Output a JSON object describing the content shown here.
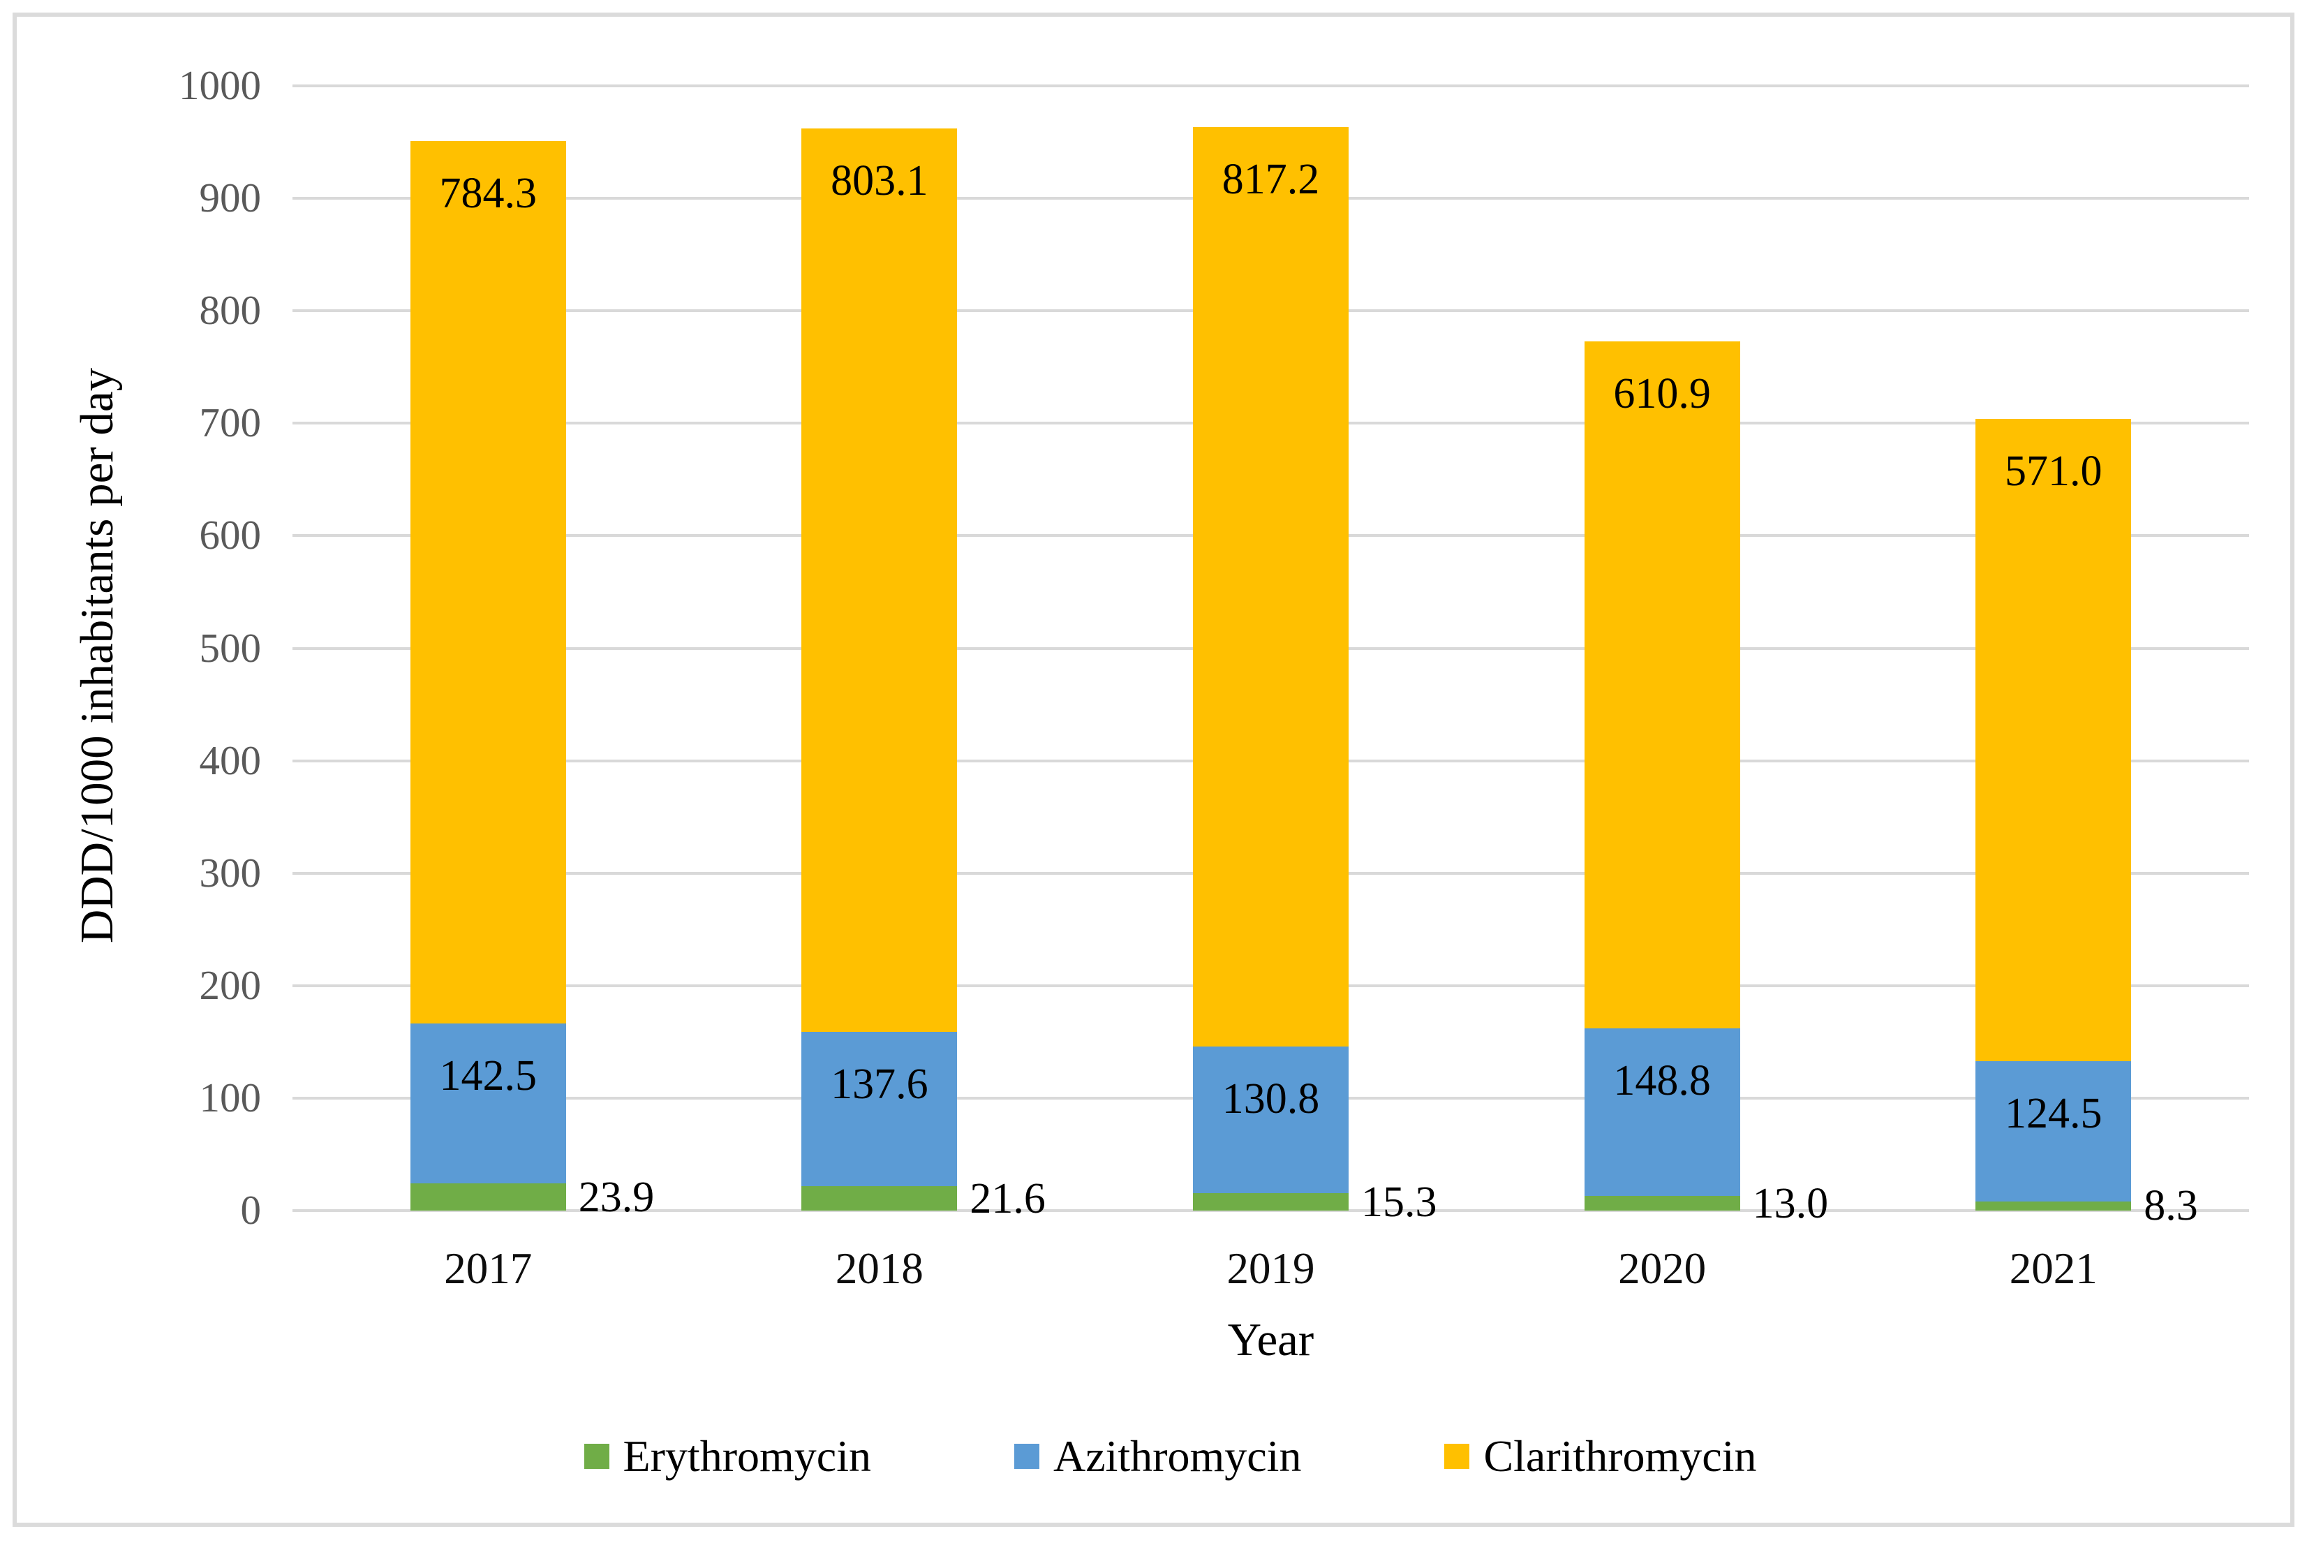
{
  "figure": {
    "background_color": "#ffffff",
    "frame_border_color": "#dbdbdb"
  },
  "axes": {
    "gridline_color": "#d9d9d9",
    "ytick_color": "#595959",
    "xtick_color": "#0d0d0d",
    "title_color": "#000000"
  },
  "chart_data": {
    "type": "bar",
    "stacked": true,
    "title": "",
    "xlabel": "Year",
    "ylabel": "DDD/1000 inhabitants per day",
    "ylim": [
      0,
      1000
    ],
    "ytick_step": 100,
    "grid": true,
    "legend_position": "bottom",
    "categories": [
      "2017",
      "2018",
      "2019",
      "2020",
      "2021"
    ],
    "series": [
      {
        "name": "Erythromycin",
        "color": "#70AD47",
        "values": [
          23.9,
          21.6,
          15.3,
          13.0,
          8.3
        ],
        "labels": [
          "23.9",
          "21.6",
          "15.3",
          "13.0",
          "8.3"
        ],
        "label_placement": "outside-right"
      },
      {
        "name": "Azithromycin",
        "color": "#5B9BD5",
        "values": [
          142.5,
          137.6,
          130.8,
          148.8,
          124.5
        ],
        "labels": [
          "142.5",
          "137.6",
          "130.8",
          "148.8",
          "124.5"
        ],
        "label_placement": "inside-end"
      },
      {
        "name": "Clarithromycin",
        "color": "#FFC000",
        "values": [
          784.3,
          803.1,
          817.2,
          610.9,
          571.0
        ],
        "labels": [
          "784.3",
          "803.1",
          "817.2",
          "610.9",
          "571.0"
        ],
        "label_placement": "inside-end"
      }
    ]
  }
}
